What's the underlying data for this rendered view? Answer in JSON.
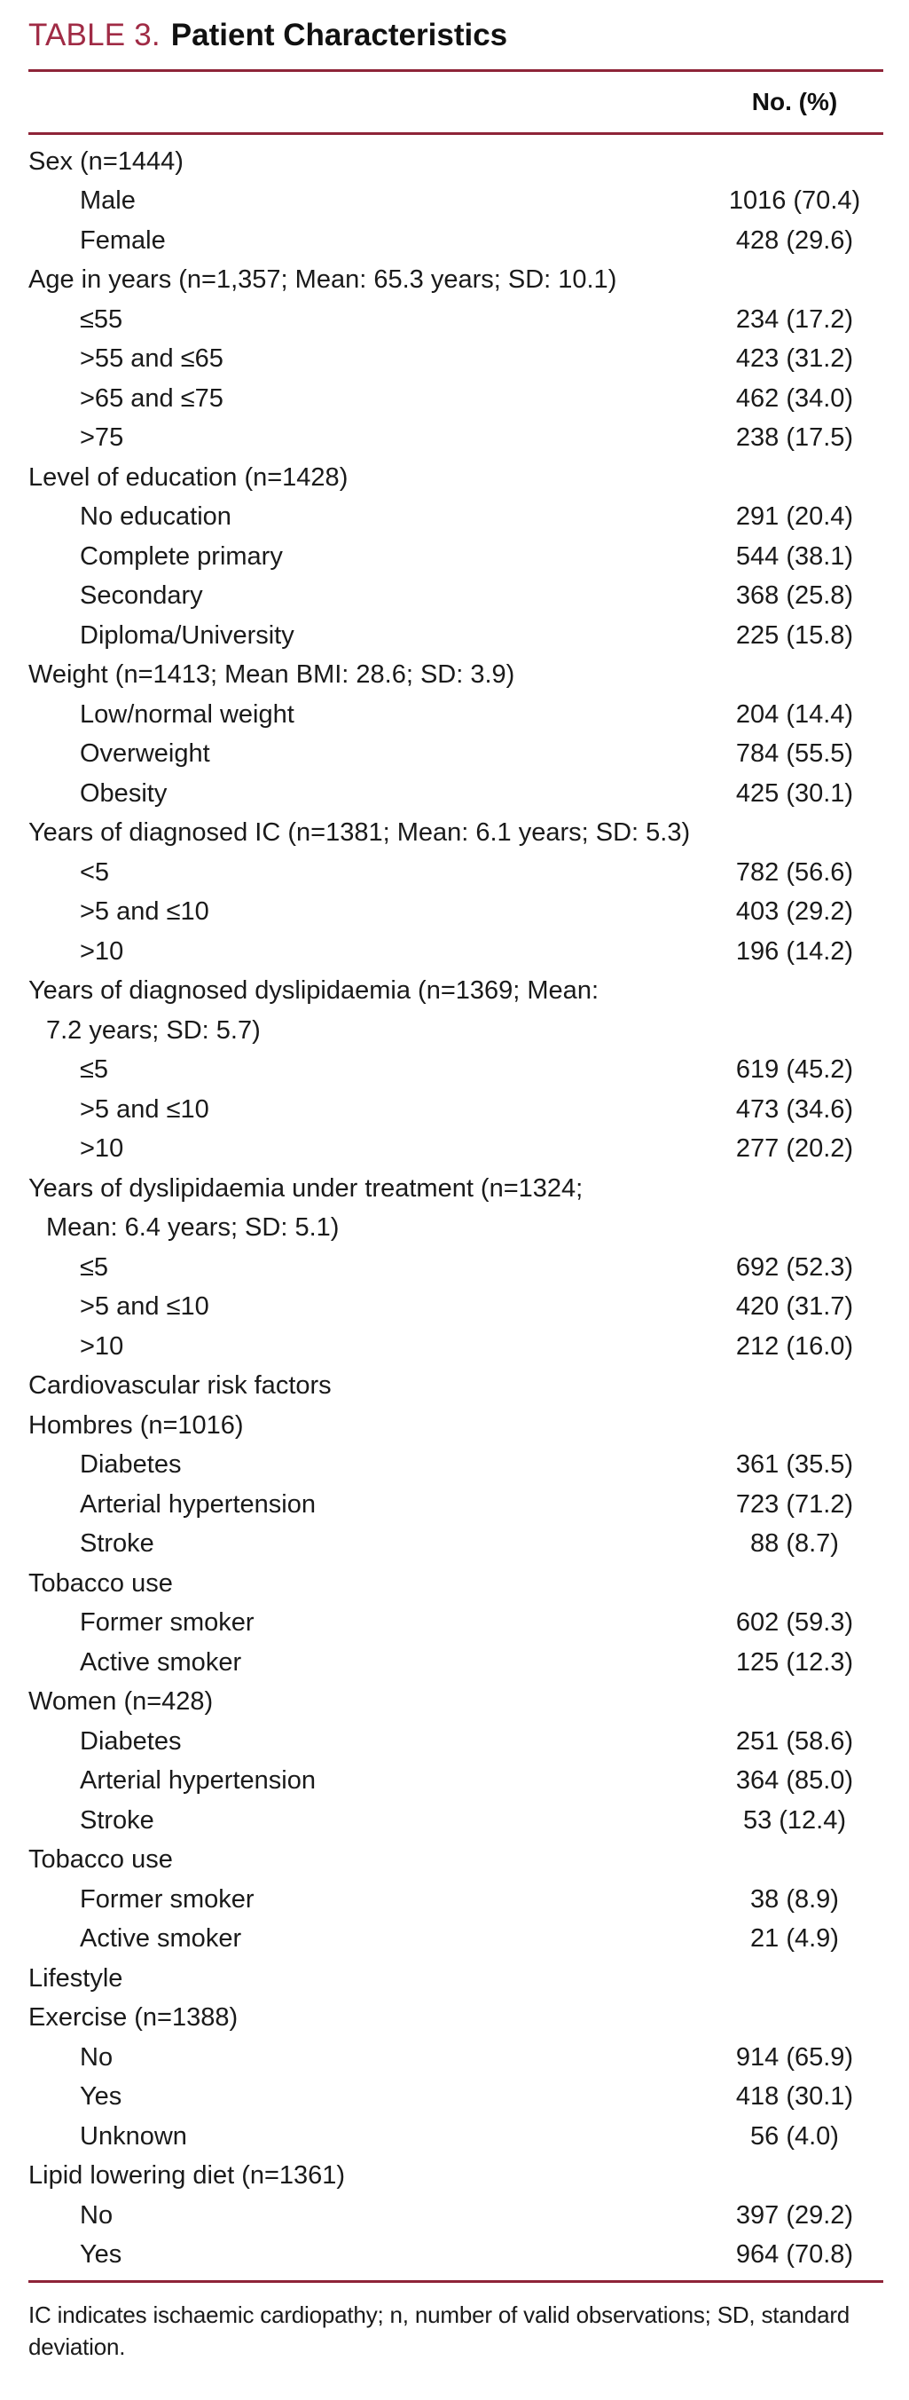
{
  "title": {
    "label": "TABLE 3.",
    "text": "Patient Characteristics"
  },
  "header": {
    "value_col": "No. (%)"
  },
  "rows": [
    {
      "label": "Sex (n=1444)",
      "value": "",
      "indent": "group"
    },
    {
      "label": "Male",
      "value": "1016 (70.4)",
      "indent": "item"
    },
    {
      "label": "Female",
      "value": "428 (29.6)",
      "indent": "item"
    },
    {
      "label": "Age in years (n=1,357; Mean: 65.3 years; SD: 10.1)",
      "value": "",
      "indent": "group"
    },
    {
      "label": "≤55",
      "value": "234 (17.2)",
      "indent": "item"
    },
    {
      "label": ">55 and ≤65",
      "value": "423 (31.2)",
      "indent": "item"
    },
    {
      "label": ">65 and ≤75",
      "value": "462 (34.0)",
      "indent": "item"
    },
    {
      "label": ">75",
      "value": "238 (17.5)",
      "indent": "item"
    },
    {
      "label": "Level of education (n=1428)",
      "value": "",
      "indent": "group"
    },
    {
      "label": "No education",
      "value": "291 (20.4)",
      "indent": "item"
    },
    {
      "label": "Complete primary",
      "value": "544 (38.1)",
      "indent": "item"
    },
    {
      "label": "Secondary",
      "value": "368 (25.8)",
      "indent": "item"
    },
    {
      "label": "Diploma/University",
      "value": "225 (15.8)",
      "indent": "item"
    },
    {
      "label": "Weight (n=1413; Mean BMI: 28.6; SD: 3.9)",
      "value": "",
      "indent": "group"
    },
    {
      "label": "Low/normal weight",
      "value": "204 (14.4)",
      "indent": "item"
    },
    {
      "label": "Overweight",
      "value": "784 (55.5)",
      "indent": "item"
    },
    {
      "label": "Obesity",
      "value": "425 (30.1)",
      "indent": "item"
    },
    {
      "label": "Years of diagnosed IC (n=1381; Mean: 6.1 years; SD: 5.3)",
      "value": "",
      "indent": "group"
    },
    {
      "label": "<5",
      "value": "782 (56.6)",
      "indent": "item"
    },
    {
      "label": ">5 and ≤10",
      "value": "403 (29.2)",
      "indent": "item"
    },
    {
      "label": ">10",
      "value": "196 (14.2)",
      "indent": "item"
    },
    {
      "label": "Years of diagnosed dyslipidaemia (n=1369; Mean:",
      "value": "",
      "indent": "group"
    },
    {
      "label": "7.2 years; SD: 5.7)",
      "value": "",
      "indent": "cont"
    },
    {
      "label": "≤5",
      "value": "619 (45.2)",
      "indent": "item"
    },
    {
      "label": ">5 and ≤10",
      "value": "473 (34.6)",
      "indent": "item"
    },
    {
      "label": ">10",
      "value": "277 (20.2)",
      "indent": "item"
    },
    {
      "label": "Years of dyslipidaemia under treatment (n=1324;",
      "value": "",
      "indent": "group"
    },
    {
      "label": "Mean: 6.4 years; SD: 5.1)",
      "value": "",
      "indent": "cont"
    },
    {
      "label": "≤5",
      "value": "692 (52.3)",
      "indent": "item"
    },
    {
      "label": ">5 and ≤10",
      "value": "420 (31.7)",
      "indent": "item"
    },
    {
      "label": ">10",
      "value": "212 (16.0)",
      "indent": "item"
    },
    {
      "label": "Cardiovascular risk factors",
      "value": "",
      "indent": "group"
    },
    {
      "label": "Hombres (n=1016)",
      "value": "",
      "indent": "group"
    },
    {
      "label": "Diabetes",
      "value": "361 (35.5)",
      "indent": "item"
    },
    {
      "label": "Arterial hypertension",
      "value": "723 (71.2)",
      "indent": "item"
    },
    {
      "label": "Stroke",
      "value": "88 (8.7)",
      "indent": "item"
    },
    {
      "label": "Tobacco use",
      "value": "",
      "indent": "group"
    },
    {
      "label": "Former smoker",
      "value": "602 (59.3)",
      "indent": "item"
    },
    {
      "label": "Active smoker",
      "value": "125 (12.3)",
      "indent": "item"
    },
    {
      "label": "Women (n=428)",
      "value": "",
      "indent": "group"
    },
    {
      "label": "Diabetes",
      "value": "251 (58.6)",
      "indent": "item"
    },
    {
      "label": "Arterial hypertension",
      "value": "364 (85.0)",
      "indent": "item"
    },
    {
      "label": "Stroke",
      "value": "53 (12.4)",
      "indent": "item"
    },
    {
      "label": "Tobacco use",
      "value": "",
      "indent": "group"
    },
    {
      "label": "Former smoker",
      "value": "38 (8.9)",
      "indent": "item"
    },
    {
      "label": "Active smoker",
      "value": "21 (4.9)",
      "indent": "item"
    },
    {
      "label": "Lifestyle",
      "value": "",
      "indent": "group"
    },
    {
      "label": "Exercise (n=1388)",
      "value": "",
      "indent": "group"
    },
    {
      "label": "No",
      "value": "914 (65.9)",
      "indent": "item"
    },
    {
      "label": "Yes",
      "value": "418 (30.1)",
      "indent": "item"
    },
    {
      "label": "Unknown",
      "value": "56 (4.0)",
      "indent": "item"
    },
    {
      "label": "Lipid lowering diet (n=1361)",
      "value": "",
      "indent": "group"
    },
    {
      "label": "No",
      "value": "397 (29.2)",
      "indent": "item"
    },
    {
      "label": "Yes",
      "value": "964 (70.8)",
      "indent": "item"
    }
  ],
  "footnote": {
    "line1": "IC indicates ischaemic cardiopathy; n, number of valid observations; SD, standard",
    "line2": "deviation."
  },
  "colors": {
    "accent_red": "#A02B45",
    "rule_red": "#8E2438",
    "text": "#1A1A1A",
    "background": "#FFFFFF"
  }
}
